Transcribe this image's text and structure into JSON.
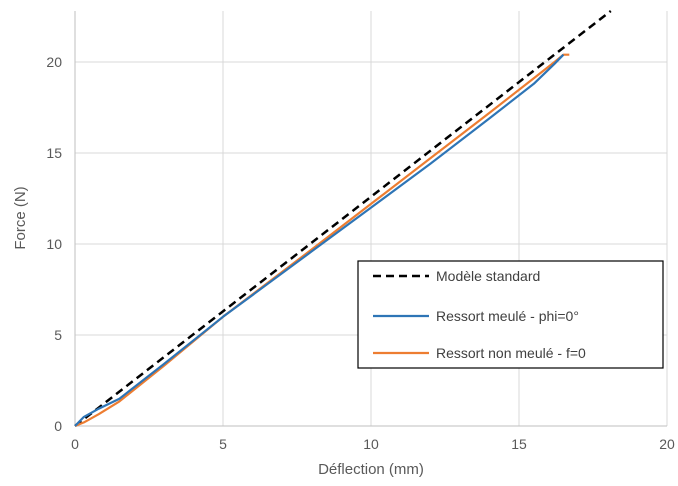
{
  "chart_data": {
    "type": "line",
    "title": "",
    "xlabel": "Déflection (mm)",
    "ylabel": "Force (N)",
    "xlim": [
      0,
      20
    ],
    "ylim": [
      0,
      22.8
    ],
    "xticks": [
      0,
      5,
      10,
      15,
      20
    ],
    "yticks": [
      0,
      5,
      10,
      15,
      20
    ],
    "grid": true,
    "legend": "center-right",
    "series": [
      {
        "name": "Modèle standard",
        "color": "#000000",
        "style": "dashed",
        "x": [
          0,
          18.1
        ],
        "y": [
          0,
          22.8
        ]
      },
      {
        "name": "Ressort meulé - phi=0°",
        "color": "#2e75b6",
        "style": "solid",
        "x": [
          0,
          0.3,
          0.8,
          1.5,
          3,
          5,
          8,
          10,
          12,
          14,
          15.5,
          16.2,
          16.5
        ],
        "y": [
          0,
          0.5,
          0.95,
          1.5,
          3.4,
          6.0,
          9.6,
          12.0,
          14.4,
          16.9,
          18.8,
          19.9,
          20.4
        ]
      },
      {
        "name": "Ressort non meulé - f=0",
        "color": "#ed7d31",
        "style": "solid",
        "x": [
          0,
          0.3,
          0.8,
          1.5,
          3,
          5,
          8,
          10,
          12,
          14,
          15.5,
          16.2,
          16.5,
          16.7
        ],
        "y": [
          0,
          0.2,
          0.65,
          1.35,
          3.3,
          6.0,
          9.7,
          12.2,
          14.7,
          17.2,
          19.1,
          20.0,
          20.4,
          20.4
        ]
      }
    ]
  }
}
